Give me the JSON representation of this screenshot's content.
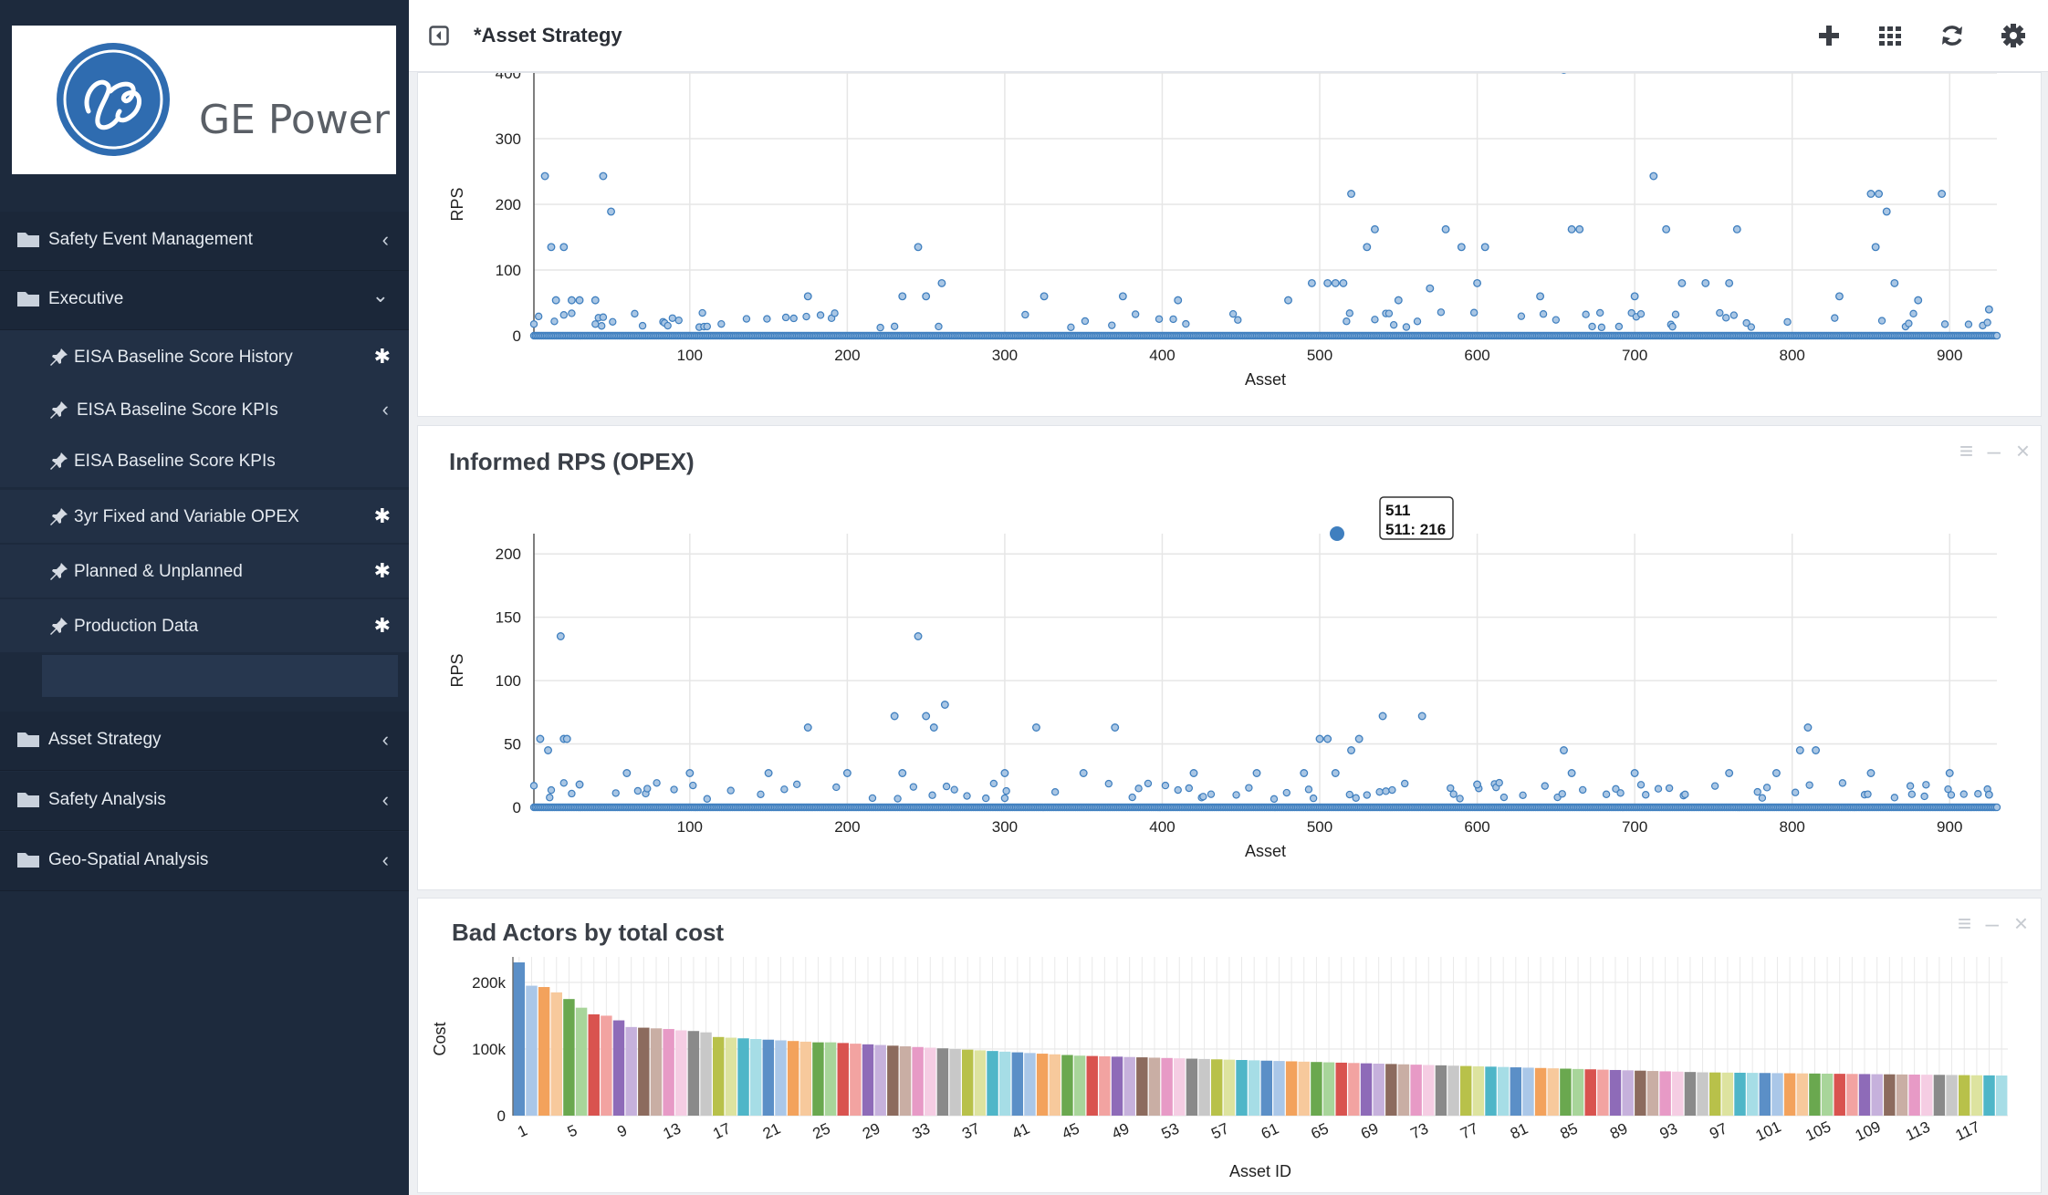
{
  "brand": {
    "name": "GE Power"
  },
  "sidebar": {
    "items": [
      {
        "label": "Safety Event Management",
        "chevron": "‹"
      },
      {
        "label": "Executive",
        "chevron": "⌄"
      },
      {
        "label": "Asset Strategy",
        "chevron": "‹"
      },
      {
        "label": "Safety Analysis",
        "chevron": "‹"
      },
      {
        "label": "Geo-Spatial Analysis",
        "chevron": "‹"
      }
    ],
    "executive_children": [
      {
        "label": "EISA Baseline Score History",
        "marker": "✱"
      },
      {
        "label": "EISA Baseline Score KPIs",
        "marker": "‹"
      },
      {
        "label": "EISA Baseline Score KPIs",
        "marker": ""
      },
      {
        "label": "3yr Fixed and Variable OPEX",
        "marker": "✱"
      },
      {
        "label": "Planned & Unplanned",
        "marker": "✱"
      },
      {
        "label": "Production Data",
        "marker": "✱"
      }
    ]
  },
  "header": {
    "title": "*Asset Strategy",
    "icons": [
      "collapse-icon",
      "plus-icon",
      "grid-icon",
      "refresh-icon",
      "gear-icon"
    ]
  },
  "colors": {
    "sidebar": "#1d2a3d",
    "point": "#3f7fbf",
    "accent": "#2f6cb0"
  },
  "chart_data": [
    {
      "type": "scatter",
      "title": "",
      "xlabel": "Asset",
      "ylabel": "RPS",
      "xlim": [
        1,
        930
      ],
      "ylim": [
        0,
        400
      ],
      "xticks": [
        100,
        200,
        300,
        400,
        500,
        600,
        700,
        800,
        900
      ],
      "yticks": [
        0,
        100,
        200,
        300,
        400
      ],
      "grid": true,
      "points": [
        [
          8,
          243
        ],
        [
          12,
          135
        ],
        [
          20,
          135
        ],
        [
          45,
          243
        ],
        [
          50,
          189
        ],
        [
          245,
          135
        ],
        [
          505,
          80
        ],
        [
          510,
          80
        ],
        [
          515,
          80
        ],
        [
          520,
          216
        ],
        [
          530,
          135
        ],
        [
          535,
          162
        ],
        [
          580,
          162
        ],
        [
          590,
          135
        ],
        [
          605,
          135
        ],
        [
          655,
          405
        ],
        [
          660,
          162
        ],
        [
          665,
          162
        ],
        [
          712,
          243
        ],
        [
          720,
          162
        ],
        [
          730,
          80
        ],
        [
          765,
          162
        ],
        [
          850,
          216
        ],
        [
          855,
          216
        ],
        [
          860,
          189
        ],
        [
          853,
          135
        ],
        [
          895,
          216
        ],
        [
          15,
          54
        ],
        [
          25,
          54
        ],
        [
          30,
          54
        ],
        [
          40,
          54
        ],
        [
          175,
          60
        ],
        [
          235,
          60
        ],
        [
          250,
          60
        ],
        [
          260,
          80
        ],
        [
          325,
          60
        ],
        [
          375,
          60
        ],
        [
          410,
          54
        ],
        [
          480,
          54
        ],
        [
          495,
          80
        ],
        [
          550,
          54
        ],
        [
          570,
          72
        ],
        [
          600,
          80
        ],
        [
          640,
          60
        ],
        [
          700,
          60
        ],
        [
          745,
          80
        ],
        [
          760,
          80
        ],
        [
          830,
          60
        ],
        [
          865,
          80
        ],
        [
          880,
          54
        ],
        [
          925,
          40
        ]
      ],
      "label_annotation": ""
    },
    {
      "type": "scatter",
      "title": "Informed RPS (OPEX)",
      "xlabel": "Asset",
      "ylabel": "RPS",
      "xlim": [
        1,
        930
      ],
      "ylim": [
        0,
        216
      ],
      "xticks": [
        100,
        200,
        300,
        400,
        500,
        600,
        700,
        800,
        900
      ],
      "yticks": [
        0,
        50,
        100,
        150,
        200
      ],
      "grid": true,
      "points": [
        [
          5,
          54
        ],
        [
          10,
          45
        ],
        [
          18,
          135
        ],
        [
          20,
          54
        ],
        [
          22,
          54
        ],
        [
          175,
          63
        ],
        [
          230,
          72
        ],
        [
          235,
          27
        ],
        [
          245,
          135
        ],
        [
          250,
          72
        ],
        [
          255,
          63
        ],
        [
          262,
          81
        ],
        [
          320,
          63
        ],
        [
          370,
          63
        ],
        [
          500,
          54
        ],
        [
          505,
          54
        ],
        [
          520,
          45
        ],
        [
          525,
          54
        ],
        [
          540,
          72
        ],
        [
          565,
          72
        ],
        [
          655,
          45
        ],
        [
          810,
          63
        ],
        [
          805,
          45
        ],
        [
          815,
          45
        ],
        [
          30,
          18
        ],
        [
          60,
          27
        ],
        [
          100,
          27
        ],
        [
          150,
          27
        ],
        [
          200,
          27
        ],
        [
          300,
          27
        ],
        [
          350,
          27
        ],
        [
          420,
          27
        ],
        [
          460,
          27
        ],
        [
          490,
          27
        ],
        [
          510,
          27
        ],
        [
          600,
          18
        ],
        [
          660,
          27
        ],
        [
          700,
          27
        ],
        [
          760,
          27
        ],
        [
          790,
          27
        ],
        [
          850,
          27
        ],
        [
          900,
          27
        ],
        [
          925,
          10
        ]
      ],
      "highlight": {
        "x": 511,
        "y": 216
      },
      "tooltip_title": "511",
      "tooltip_value": "511: 216"
    },
    {
      "type": "bar",
      "title": "Bad Actors by total cost",
      "xlabel": "Asset ID",
      "ylabel": "Cost",
      "ylim": [
        0,
        230000
      ],
      "yticks_labels": [
        "0",
        "100k",
        "200k"
      ],
      "yticks": [
        0,
        100000,
        200000
      ],
      "categories_visible": [
        "1",
        "5",
        "9",
        "13",
        "17",
        "21",
        "25",
        "29",
        "33",
        "37",
        "41",
        "45",
        "49",
        "53",
        "57",
        "61",
        "65",
        "69",
        "73",
        "77",
        "81",
        "85",
        "89",
        "93",
        "97",
        "101",
        "105",
        "109",
        "113",
        "117"
      ],
      "bar_count": 120,
      "values": [
        230000,
        195000,
        193000,
        185000,
        175000,
        162000,
        152000,
        150000,
        143000,
        133000,
        132000,
        131000,
        130000,
        128000,
        127000,
        125000,
        118000,
        117000,
        116000,
        115000,
        114000,
        113000,
        112000,
        111000,
        110000,
        110000,
        109000,
        108000,
        107000,
        106000,
        105000,
        104000,
        103000,
        102000,
        101000,
        100000,
        99000,
        98000,
        97000,
        96000,
        95000,
        94000,
        93000,
        92000,
        91000,
        90000,
        89500,
        89000,
        88500,
        88000,
        87500,
        87000,
        86500,
        86000,
        85500,
        85000,
        84500,
        84000,
        83500,
        83000,
        82500,
        82000,
        81500,
        81000,
        80500,
        80000,
        79500,
        79000,
        78500,
        78000,
        77500,
        77000,
        76500,
        76000,
        75500,
        75000,
        74500,
        74000,
        73500,
        73000,
        72500,
        72000,
        71500,
        71000,
        70500,
        70000,
        69500,
        69000,
        68500,
        68000,
        67500,
        67000,
        66500,
        66000,
        65500,
        65000,
        64800,
        64600,
        64400,
        64200,
        64000,
        63800,
        63600,
        63400,
        63200,
        63000,
        62800,
        62600,
        62400,
        62200,
        62000,
        61800,
        61600,
        61400,
        61200,
        61000,
        60800,
        60600,
        60400,
        60200
      ],
      "palette": [
        "#5b8fc7",
        "#aac7e8",
        "#f3a25c",
        "#f7c99c",
        "#6aa84f",
        "#a8d59a",
        "#d9534f",
        "#f2a3a1",
        "#8e6bb8",
        "#c6b1dc",
        "#8c6b5e",
        "#c9aea4",
        "#e79ac6",
        "#f5cde3",
        "#8a8a8a",
        "#c8c8c8",
        "#b8c14a",
        "#dde39f",
        "#4fb6c8",
        "#a6dde6"
      ]
    }
  ]
}
